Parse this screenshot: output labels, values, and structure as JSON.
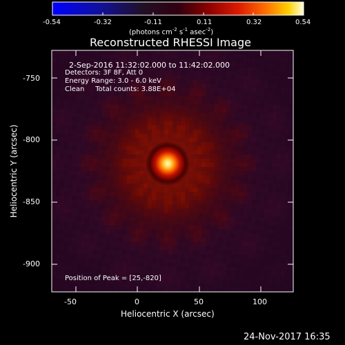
{
  "colorbar": {
    "ticks": [
      "-0.54",
      "-0.32",
      "-0.11",
      "0.11",
      "0.32",
      "0.54"
    ],
    "units_prefix": "(photons cm",
    "units_exp1": "-2",
    "units_mid1": " s",
    "units_exp2": "-1",
    "units_mid2": " asec",
    "units_exp3": "-2",
    "units_suffix": ")"
  },
  "plot": {
    "title": "Reconstructed RHESSI Image",
    "x_label": "Heliocentric X (arcsec)",
    "y_label": "Heliocentric Y (arcsec)",
    "x_ticks": [
      "-50",
      "0",
      "50",
      "100"
    ],
    "y_ticks": [
      "-750",
      "-800",
      "-850",
      "-900"
    ],
    "info_line1": "2-Sep-2016 11:32:02.000 to 11:42:02.000",
    "info_line2": "Detectors: 3F 8F, Att 0",
    "info_line3": "Energy Range: 3.0 - 6.0 keV",
    "info_line4": "Clean     Total counts: 3.88E+04",
    "peak": "Position of Peak = [25,-820]"
  },
  "timestamp": "24-Nov-2017 16:35",
  "colors": {
    "background": "#000000",
    "colorbar_start": "#0000ff",
    "colorbar_hot": "#ffffe0"
  }
}
